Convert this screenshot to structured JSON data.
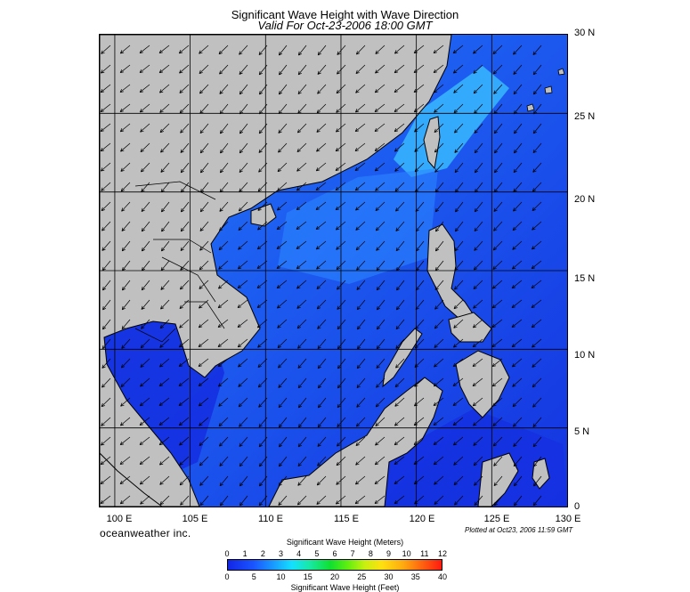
{
  "title": "Significant Wave Height with Wave Direction",
  "subtitle": "Valid For Oct-23-2006 18:00 GMT",
  "lat_labels": [
    "30 N",
    "25 N",
    "20 N",
    "15 N",
    "10 N",
    "5 N",
    "0"
  ],
  "lon_labels": [
    "100 E",
    "105 E",
    "110 E",
    "115 E",
    "120 E",
    "125 E",
    "130 E"
  ],
  "brand": "oceanweather inc.",
  "plotted": "Plotted at Oct23, 2006 11:59 GMT",
  "colorbar": {
    "title_meters": "Significant Wave Height (Meters)",
    "title_feet": "Significant Wave Height (Feet)",
    "meter_ticks": [
      "0",
      "1",
      "2",
      "3",
      "4",
      "5",
      "6",
      "7",
      "8",
      "9",
      "10",
      "11",
      "12"
    ],
    "feet_ticks": [
      "0",
      "5",
      "10",
      "15",
      "20",
      "25",
      "30",
      "35",
      "40"
    ]
  },
  "map": {
    "lon_range": [
      99,
      130
    ],
    "lat_range": [
      0,
      30
    ],
    "grid_lons": [
      100,
      105,
      110,
      115,
      120,
      125
    ],
    "grid_lats": [
      5,
      10,
      15,
      20,
      25
    ],
    "colors": {
      "land": "#c0c0c0",
      "sea_deep": "#1226e6",
      "sea_mid": "#1e5ef0",
      "sea_high": "#28a8ff",
      "grid": "#000000"
    },
    "wave_direction": "northeast to southwest"
  }
}
